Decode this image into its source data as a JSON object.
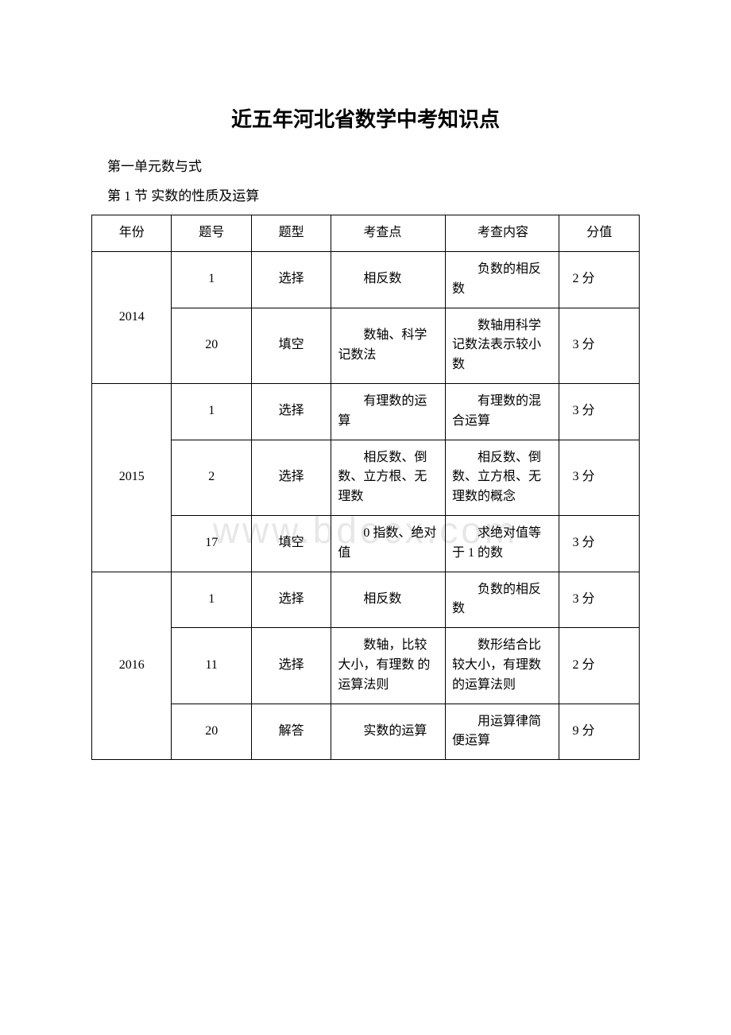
{
  "title": "近五年河北省数学中考知识点",
  "unit": "第一单元数与式",
  "section": "第 1 节 实数的性质及运算",
  "watermark": "www.bdocx.com",
  "columns": [
    "年份",
    "题号",
    "题型",
    "考查点",
    "考查内容",
    "分值"
  ],
  "table": {
    "border_color": "#000000",
    "background_color": "#ffffff",
    "text_color": "#000000",
    "font_size_pt": 12,
    "indent_cols": [
      3,
      4
    ],
    "col_widths_pct": [
      14,
      14,
      14,
      20,
      20,
      14
    ]
  },
  "groups": [
    {
      "year": "2014",
      "rows": [
        {
          "num": "1",
          "type": "选择",
          "point": "相反数",
          "content": "负数的相反数",
          "score": "2 分"
        },
        {
          "num": "20",
          "type": "填空",
          "point": "数轴、科学记数法",
          "content": "数轴用科学记数法表示较小数",
          "score": "3 分"
        }
      ]
    },
    {
      "year": "2015",
      "rows": [
        {
          "num": "1",
          "type": "选择",
          "point": "有理数的运算",
          "content": "有理数的混合运算",
          "score": "3 分"
        },
        {
          "num": "2",
          "type": "选择",
          "point": "相反数、倒数、立方根、无理数",
          "content": "相反数、倒数、立方根、无理数的概念",
          "score": "3 分"
        },
        {
          "num": "17",
          "type": "填空",
          "point": "0 指数、绝对值",
          "content": "求绝对值等于 1 的数",
          "score": "3 分"
        }
      ]
    },
    {
      "year": "2016",
      "rows": [
        {
          "num": "1",
          "type": "选择",
          "point": "相反数",
          "content": "负数的相反数",
          "score": "3 分"
        },
        {
          "num": "11",
          "type": "选择",
          "point": "数轴，比较大小，有理数 的运算法则",
          "content": "数形结合比较大小，有理数的运算法则",
          "score": "2 分"
        },
        {
          "num": "20",
          "type": "解答",
          "point": "实数的运算",
          "content": "用运算律简便运算",
          "score": "9 分"
        }
      ]
    }
  ]
}
